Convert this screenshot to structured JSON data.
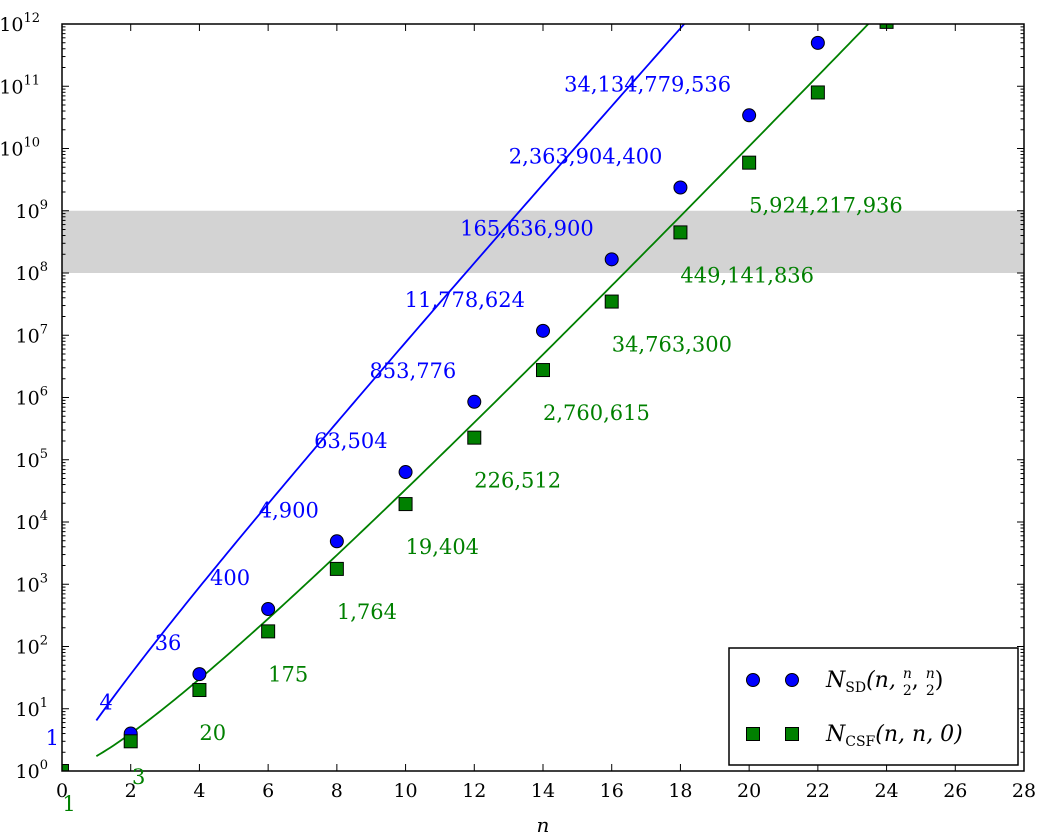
{
  "chart_data": {
    "type": "scatter",
    "xlabel": "n",
    "xlim": [
      0,
      28
    ],
    "ylim_exponents": [
      0,
      12
    ],
    "yscale": "log",
    "x_ticks": [
      "0",
      "2",
      "4",
      "6",
      "8",
      "10",
      "12",
      "14",
      "16",
      "18",
      "20",
      "22",
      "24",
      "26",
      "28"
    ],
    "y_ticks": [
      {
        "base": "10",
        "exp": "0"
      },
      {
        "base": "10",
        "exp": "1"
      },
      {
        "base": "10",
        "exp": "2"
      },
      {
        "base": "10",
        "exp": "3"
      },
      {
        "base": "10",
        "exp": "4"
      },
      {
        "base": "10",
        "exp": "5"
      },
      {
        "base": "10",
        "exp": "6"
      },
      {
        "base": "10",
        "exp": "7"
      },
      {
        "base": "10",
        "exp": "8"
      },
      {
        "base": "10",
        "exp": "9"
      },
      {
        "base": "10",
        "exp": "10"
      },
      {
        "base": "10",
        "exp": "11"
      },
      {
        "base": "10",
        "exp": "12"
      }
    ],
    "shaded_band": {
      "ymin": 100000000,
      "ymax": 1000000000,
      "color": "#d3d3d3"
    },
    "grid": false,
    "legend_position": "bottom-right",
    "series": [
      {
        "legend": {
          "sym": "N",
          "sub": "SD",
          "args": "(n, ",
          "frac_num": "n",
          "frac_den": "2",
          "sep": ", ",
          "close": ")"
        },
        "color": "#0000ff",
        "marker": "circle",
        "x": [
          0,
          2,
          4,
          6,
          8,
          10,
          12,
          14,
          16,
          18,
          20,
          22
        ],
        "y": [
          1,
          4,
          36,
          400,
          4900,
          63504,
          853776,
          11778624,
          165636900,
          2363904400,
          34134779536,
          497634306624
        ],
        "labels": [
          "1",
          "4",
          "36",
          "400",
          "4,900",
          "63,504",
          "853,776",
          "11,778,624",
          "165,636,900",
          "2,363,904,400",
          "34,134,779,536",
          ""
        ]
      },
      {
        "legend": {
          "sym": "N",
          "sub": "CSF",
          "args": "(n, n, 0)"
        },
        "color": "#008000",
        "marker": "square",
        "x": [
          0,
          2,
          4,
          6,
          8,
          10,
          12,
          14,
          16,
          18,
          20,
          22,
          24
        ],
        "y": [
          1,
          3,
          20,
          175,
          1764,
          19404,
          226512,
          2760615,
          34763300,
          449141836,
          5924217936,
          79483257308,
          1081724803600
        ],
        "labels": [
          "1",
          "3",
          "20",
          "175",
          "1,764",
          "19,404",
          "226,512",
          "2,760,615",
          "34,763,300",
          "449,141,836",
          "5,924,217,936",
          "",
          ""
        ]
      }
    ]
  }
}
